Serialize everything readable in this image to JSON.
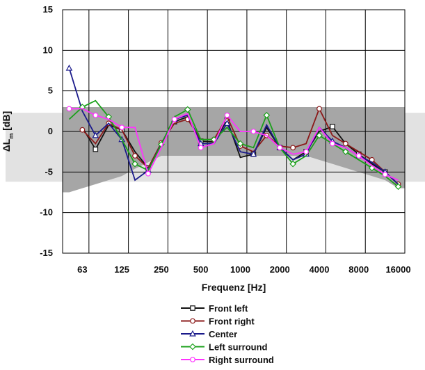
{
  "chart_data": {
    "type": "line",
    "title": "",
    "xlabel": "Frequenz [Hz]",
    "ylabel": "ΔL",
    "ylabel_sub": "m",
    "ylabel_unit": " [dB]",
    "ylim": [
      -15,
      15
    ],
    "yticks": [
      "15",
      "10",
      "5",
      "0",
      "-5",
      "-10",
      "-15"
    ],
    "x_scale": "log (third-octave bands)",
    "x_tick_labels": [
      "63",
      "125",
      "250",
      "500",
      "1000",
      "2000",
      "4000",
      "8000",
      "16000"
    ],
    "x_bands": [
      50,
      63,
      80,
      100,
      125,
      160,
      200,
      250,
      315,
      400,
      500,
      630,
      800,
      1000,
      1250,
      1600,
      2000,
      2500,
      3150,
      4000,
      5000,
      6300,
      8000,
      10000,
      12500,
      16000
    ],
    "grid": true,
    "legend_position": "bottom-center",
    "tolerance_band": {
      "upper": [
        3,
        3,
        3,
        3,
        3,
        3,
        3,
        3,
        3,
        3,
        3,
        3,
        3,
        3,
        3,
        3,
        3,
        3,
        3,
        3,
        3,
        3,
        3,
        3,
        3,
        3
      ],
      "lower": [
        -7.5,
        -7,
        -6.5,
        -6,
        -5.5,
        -4.6,
        -3.8,
        -3,
        -3,
        -3,
        -3,
        -3,
        -3,
        -3,
        -3,
        -3,
        -3,
        -3,
        -3,
        -3.5,
        -4,
        -4.5,
        -5,
        -5.5,
        -6,
        -7
      ]
    },
    "series": [
      {
        "name": "Front left",
        "color": "#111111",
        "marker": "square",
        "values": [
          null,
          0.5,
          -2.2,
          0.8,
          0.2,
          -2.5,
          -4.5,
          -1.5,
          1.2,
          1.8,
          -1.2,
          -1.3,
          1.4,
          -3.2,
          -2.8,
          0.5,
          -2.0,
          -3.5,
          -2.5,
          0.0,
          0.6,
          -1.5,
          -2.8,
          -4.0,
          -5.0,
          -6.5
        ]
      },
      {
        "name": "Front right",
        "color": "#8b1a1a",
        "marker": "circle",
        "values": [
          null,
          0.2,
          -1.5,
          1.0,
          0.2,
          -3.0,
          -4.5,
          -1.4,
          1.0,
          1.5,
          -1.0,
          -1.0,
          1.8,
          -1.8,
          -2.5,
          -0.5,
          -1.8,
          -2.0,
          -1.5,
          2.8,
          -0.5,
          -1.5,
          -2.5,
          -3.5,
          -5.0,
          -6.5
        ]
      },
      {
        "name": "Center",
        "color": "#1a1a8b",
        "marker": "triangle",
        "values": [
          7.8,
          2.5,
          -0.5,
          1.0,
          -1.0,
          -6.0,
          -4.8,
          -1.5,
          1.5,
          2.0,
          -1.5,
          -1.5,
          1.0,
          -2.5,
          -2.8,
          0.8,
          -2.0,
          -3.5,
          -2.8,
          0.5,
          -1.2,
          -2.0,
          -3.0,
          -3.8,
          -5.0,
          -6.5
        ]
      },
      {
        "name": "Left surround",
        "color": "#1aa01a",
        "marker": "diamond",
        "values": [
          1.5,
          3.0,
          3.8,
          1.8,
          -1.0,
          -4.0,
          -4.8,
          -1.6,
          1.8,
          2.7,
          -1.0,
          -1.0,
          0.5,
          -1.5,
          -2.0,
          2.0,
          -2.0,
          -4.0,
          -3.0,
          -0.5,
          -1.5,
          -2.5,
          -3.5,
          -4.5,
          -5.5,
          -6.8
        ]
      },
      {
        "name": "Right surround",
        "color": "#ff33ff",
        "marker": "circle",
        "values": [
          2.8,
          2.8,
          2.0,
          1.5,
          0.5,
          0.5,
          -5.2,
          -2.0,
          1.5,
          2.2,
          -2.0,
          -1.5,
          2.0,
          0.0,
          0.0,
          -0.5,
          -2.0,
          -2.8,
          -2.5,
          0.5,
          -1.5,
          -2.0,
          -3.0,
          -4.2,
          -5.3,
          -6.0
        ]
      }
    ]
  }
}
